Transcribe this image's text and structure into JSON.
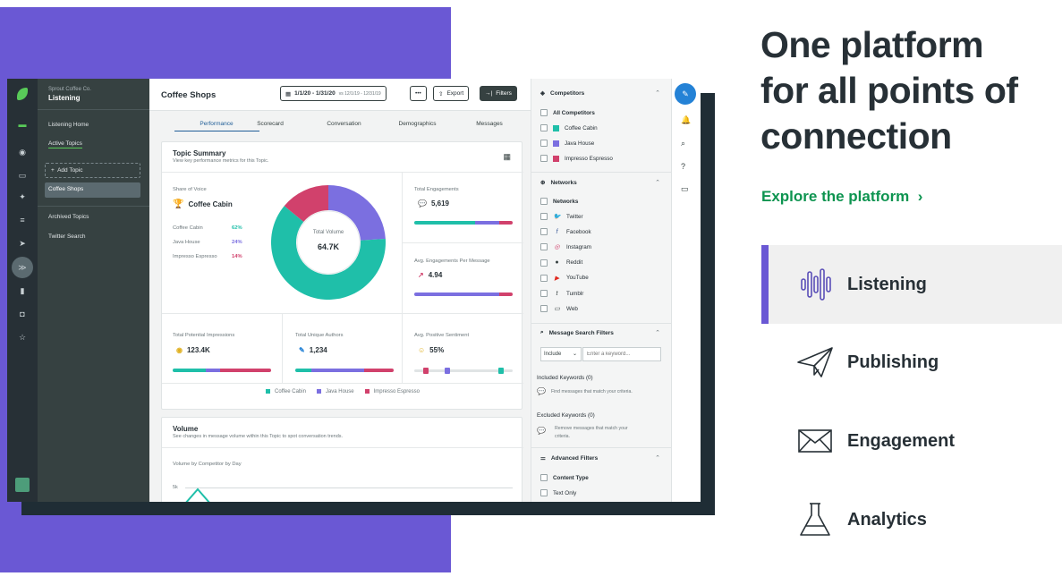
{
  "hero": {
    "line1": "One platform",
    "line2": "for all points of",
    "line3": "connection",
    "explore_label": "Explore the platform",
    "accent_color": "#6a58d4",
    "link_color": "#0d9450"
  },
  "features": [
    {
      "label": "Listening",
      "icon": "sound-wave-icon",
      "active": true
    },
    {
      "label": "Publishing",
      "icon": "paper-plane-icon",
      "active": false
    },
    {
      "label": "Engagement",
      "icon": "envelope-icon",
      "active": false
    },
    {
      "label": "Analytics",
      "icon": "flask-icon",
      "active": false
    }
  ],
  "app": {
    "org": "Sprout Coffee Co.",
    "section_title": "Listening",
    "nav": {
      "listening_home": "Listening Home",
      "active_topics": "Active Topics",
      "add_topic": "Add Topic",
      "selected_topic": "Coffee Shops",
      "archived_topics": "Archived Topics",
      "twitter_search": "Twitter Search"
    },
    "header": {
      "title": "Coffee Shops",
      "date_range": "1/1/20 - 1/31/20",
      "compare_range": "vs 12/1/19 - 12/31/19",
      "more": "•••",
      "export": "Export",
      "filters": "Filters"
    },
    "tabs": [
      "Performance",
      "Scorecard",
      "Conversation",
      "Demographics",
      "Messages"
    ],
    "topic_summary": {
      "title": "Topic Summary",
      "subtitle": "View key performance metrics for this Topic.",
      "share_label": "Share of Voice",
      "leader": "Coffee Cabin",
      "brands": [
        {
          "name": "Coffee Cabin",
          "pct": "62%",
          "color": "#1fbfa9"
        },
        {
          "name": "Java House",
          "pct": "24%",
          "color": "#7b6fe0"
        },
        {
          "name": "Impresso Espresso",
          "pct": "14%",
          "color": "#d1416c"
        }
      ],
      "donut_shares": [
        62,
        24,
        14
      ],
      "total_volume_label": "Total Volume",
      "total_volume_value": "64.7K",
      "total_engagements_label": "Total Engagements",
      "total_engagements_value": "5,619",
      "avg_engagements_label": "Avg. Engagements Per Message",
      "avg_engagements_value": "4.94",
      "impressions_label": "Total Potential Impressions",
      "impressions_value": "123.4K",
      "authors_label": "Total Unique Authors",
      "authors_value": "1,234",
      "sentiment_label": "Avg. Positive Sentiment",
      "sentiment_value": "55%"
    },
    "volume": {
      "title": "Volume",
      "subtitle": "See changes in message volume within this Topic to spot conversation trends.",
      "chart_label": "Volume by Competitor by Day",
      "y_tick": "5k"
    },
    "filters_panel": {
      "competitors_title": "Competitors",
      "all_competitors": "All Competitors",
      "competitors": [
        {
          "name": "Coffee Cabin",
          "color": "#1fbfa9"
        },
        {
          "name": "Java House",
          "color": "#7b6fe0"
        },
        {
          "name": "Impresso Espresso",
          "color": "#d1416c"
        }
      ],
      "networks_title": "Networks",
      "networks_all": "Networks",
      "networks": [
        {
          "name": "Twitter",
          "icon": "twitter-icon",
          "glyph": "🐦",
          "color": "#1da1f2"
        },
        {
          "name": "Facebook",
          "icon": "facebook-icon",
          "glyph": "f",
          "color": "#3b5998"
        },
        {
          "name": "Instagram",
          "icon": "instagram-icon",
          "glyph": "◎",
          "color": "#d1416c"
        },
        {
          "name": "Reddit",
          "icon": "reddit-icon",
          "glyph": "●",
          "color": "#364141"
        },
        {
          "name": "YouTube",
          "icon": "youtube-icon",
          "glyph": "▶",
          "color": "#e02a20"
        },
        {
          "name": "Tumblr",
          "icon": "tumblr-icon",
          "glyph": "t",
          "color": "#364141"
        },
        {
          "name": "Web",
          "icon": "web-icon",
          "glyph": "▭",
          "color": "#364141"
        }
      ],
      "message_search_title": "Message Search Filters",
      "include_option": "Include",
      "keyword_placeholder": "Enter a keyword...",
      "included_keywords": "Included Keywords (0)",
      "included_hint": "Find messages that match your criteria.",
      "excluded_keywords": "Excluded Keywords (0)",
      "excluded_hint_1": "Remove messages that match your",
      "excluded_hint_2": "criteria.",
      "advanced_title": "Advanced Filters",
      "content_type": "Content Type",
      "text_only": "Text Only"
    }
  }
}
